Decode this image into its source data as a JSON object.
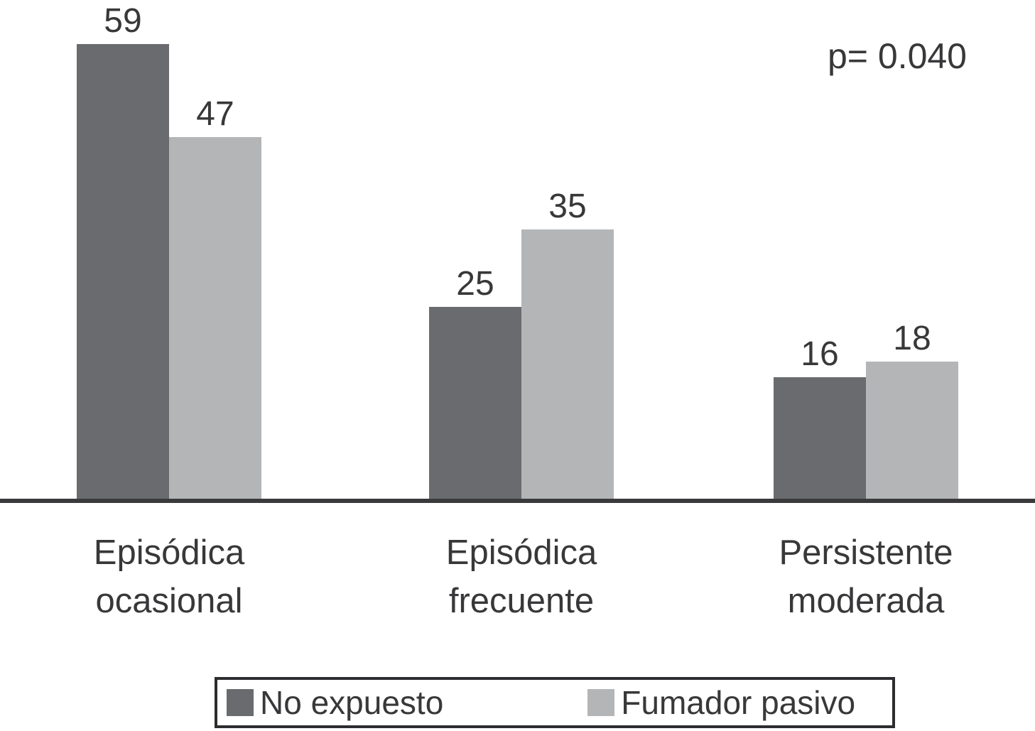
{
  "chart_data": {
    "type": "bar",
    "title": "",
    "xlabel": "",
    "ylabel": "",
    "categories": [
      "Episódica ocasional",
      "Episódica frecuente",
      "Persistente moderada"
    ],
    "categories_lines": [
      [
        "Episódica",
        "ocasional"
      ],
      [
        "Episódica",
        "frecuente"
      ],
      [
        "Persistente",
        "moderada"
      ]
    ],
    "series": [
      {
        "name": "No expuesto",
        "color": "#696b6e",
        "values": [
          59,
          25,
          16
        ]
      },
      {
        "name": "Fumador pasivo",
        "color": "#b3b5b7",
        "values": [
          47,
          35,
          18
        ]
      }
    ],
    "annotation": "p= 0.040",
    "data_labels": true,
    "ylim": [
      0,
      62
    ],
    "grid": false,
    "legend_position": "bottom",
    "axis_color": "#3a3a3c",
    "text_color": "#38383a"
  }
}
